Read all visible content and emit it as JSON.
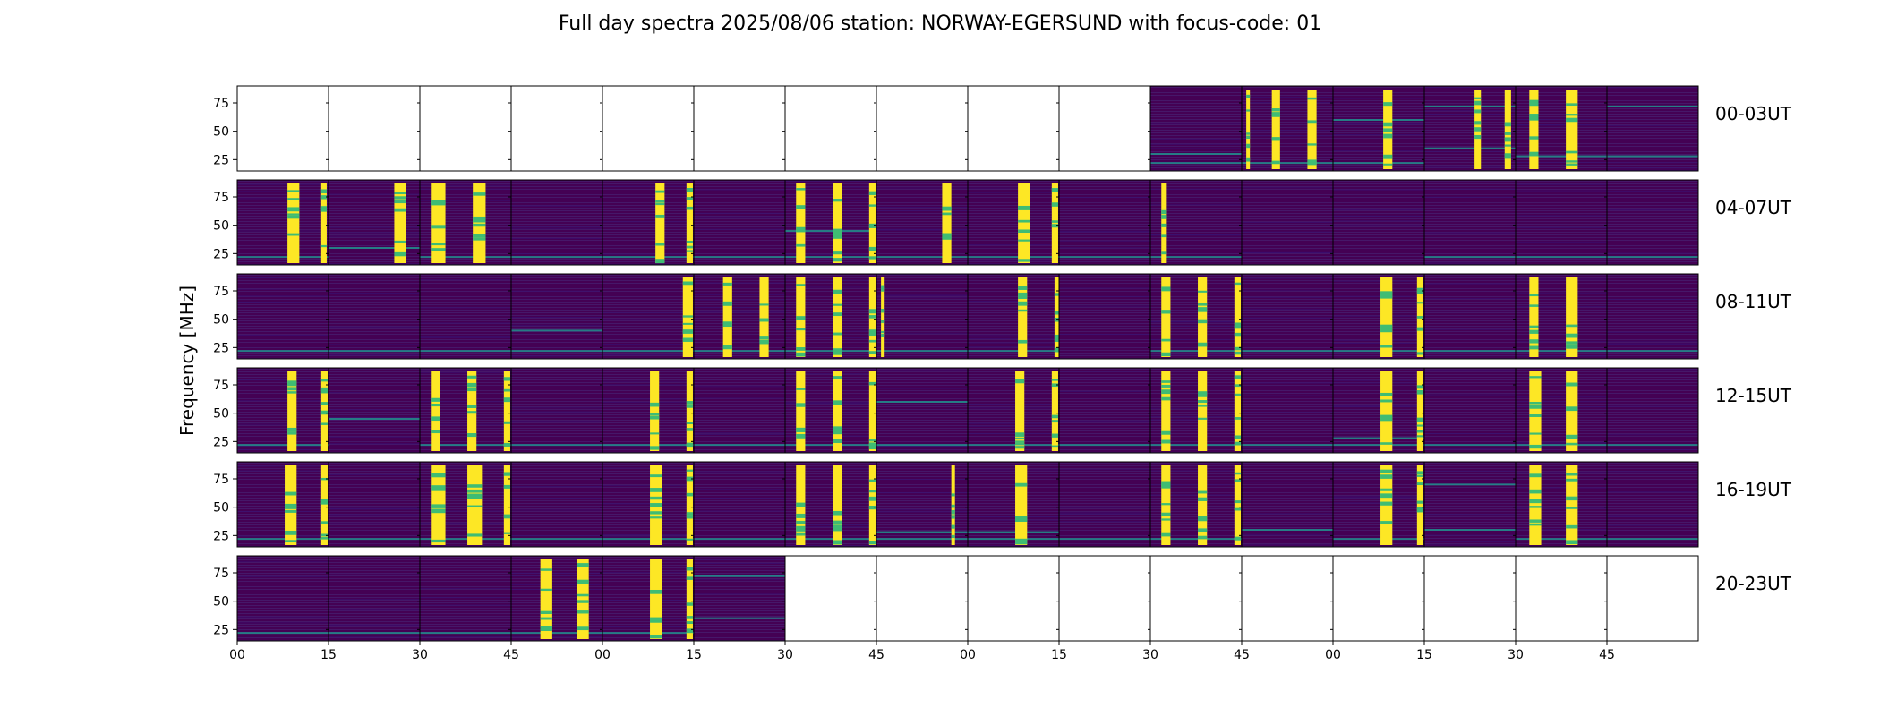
{
  "title": "Full day spectra 2025/08/06 station: NORWAY-EGERSUND with focus-code: 01",
  "colors": {
    "background_panel": "#440154",
    "panel_mid": "#3b0f70",
    "signal_low": "#21908d",
    "signal_mid": "#3fbc73",
    "signal_high": "#fde725",
    "empty_panel": "#ffffff",
    "axis": "#000000"
  },
  "chart_data": {
    "type": "heatmap",
    "colormap": "viridis",
    "title": "Full day spectra 2025/08/06 station: NORWAY-EGERSUND with focus-code: 01",
    "ylabel": "Frequency [MHz]",
    "xlabel": "",
    "ylim": [
      15,
      90
    ],
    "y_ticks": [
      "75",
      "50",
      "25"
    ],
    "y_tick_values": [
      75,
      50,
      25
    ],
    "x_tick_labels": [
      "00",
      "15",
      "30",
      "45",
      "00",
      "15",
      "30",
      "45",
      "00",
      "15",
      "30",
      "45",
      "00",
      "15",
      "30",
      "45"
    ],
    "rows": [
      {
        "label": "00-03UT",
        "panels": [
          {
            "filled": false
          },
          {
            "filled": false
          },
          {
            "filled": false
          },
          {
            "filled": false
          },
          {
            "filled": false
          },
          {
            "filled": false
          },
          {
            "filled": false
          },
          {
            "filled": false
          },
          {
            "filled": false
          },
          {
            "filled": false
          },
          {
            "filled": true,
            "bands": [],
            "hlines": [
              30,
              22
            ]
          },
          {
            "filled": true,
            "bands": [
              [
                0.05,
                0.09
              ],
              [
                0.33,
                0.42
              ],
              [
                0.72,
                0.82
              ]
            ],
            "hlines": [
              22
            ]
          },
          {
            "filled": true,
            "bands": [
              [
                0.55,
                0.65
              ]
            ],
            "hlines": [
              22,
              60
            ]
          },
          {
            "filled": true,
            "bands": [
              [
                0.55,
                0.62
              ],
              [
                0.88,
                0.95
              ]
            ],
            "hlines": [
              72,
              35
            ]
          },
          {
            "filled": true,
            "bands": [
              [
                0.15,
                0.25
              ],
              [
                0.55,
                0.68
              ]
            ],
            "hlines": [
              28
            ]
          },
          {
            "filled": true,
            "bands": [],
            "hlines": [
              72,
              28
            ]
          }
        ]
      },
      {
        "label": "04-07UT",
        "panels": [
          {
            "filled": true,
            "bands": [
              [
                0.55,
                0.68
              ],
              [
                0.92,
                0.98
              ]
            ],
            "hlines": [
              22
            ]
          },
          {
            "filled": true,
            "bands": [
              [
                0.72,
                0.85
              ]
            ],
            "hlines": [
              30
            ]
          },
          {
            "filled": true,
            "bands": [
              [
                0.12,
                0.28
              ],
              [
                0.58,
                0.72
              ]
            ],
            "hlines": [
              22
            ]
          },
          {
            "filled": true,
            "bands": [],
            "hlines": [
              22
            ]
          },
          {
            "filled": true,
            "bands": [
              [
                0.58,
                0.68
              ],
              [
                0.92,
                0.99
              ]
            ],
            "hlines": [
              22
            ]
          },
          {
            "filled": true,
            "bands": [],
            "hlines": [
              22
            ]
          },
          {
            "filled": true,
            "bands": [
              [
                0.12,
                0.22
              ],
              [
                0.52,
                0.62
              ],
              [
                0.92,
                0.99
              ]
            ],
            "hlines": [
              45,
              22
            ]
          },
          {
            "filled": true,
            "bands": [
              [
                0.72,
                0.82
              ]
            ],
            "hlines": [
              22
            ]
          },
          {
            "filled": true,
            "bands": [
              [
                0.55,
                0.68
              ],
              [
                0.92,
                0.99
              ]
            ],
            "hlines": [
              22
            ]
          },
          {
            "filled": true,
            "bands": [],
            "hlines": [
              22
            ]
          },
          {
            "filled": true,
            "bands": [
              [
                0.12,
                0.18
              ]
            ],
            "hlines": [
              22
            ]
          },
          {
            "filled": true,
            "bands": [],
            "hlines": []
          },
          {
            "filled": true,
            "bands": [],
            "hlines": []
          },
          {
            "filled": true,
            "bands": [],
            "hlines": [
              22
            ]
          },
          {
            "filled": true,
            "bands": [],
            "hlines": [
              22
            ]
          },
          {
            "filled": true,
            "bands": [],
            "hlines": [
              22
            ]
          }
        ]
      },
      {
        "label": "08-11UT",
        "panels": [
          {
            "filled": true,
            "bands": [],
            "hlines": [
              22
            ]
          },
          {
            "filled": true,
            "bands": [],
            "hlines": [
              22
            ]
          },
          {
            "filled": true,
            "bands": [],
            "hlines": [
              22
            ]
          },
          {
            "filled": true,
            "bands": [],
            "hlines": [
              40,
              22
            ]
          },
          {
            "filled": true,
            "bands": [
              [
                0.88,
                0.99
              ]
            ],
            "hlines": [
              22
            ]
          },
          {
            "filled": true,
            "bands": [
              [
                0.32,
                0.42
              ],
              [
                0.72,
                0.82
              ]
            ],
            "hlines": [
              22
            ]
          },
          {
            "filled": true,
            "bands": [
              [
                0.12,
                0.22
              ],
              [
                0.52,
                0.62
              ],
              [
                0.92,
                0.99
              ]
            ],
            "hlines": [
              22
            ]
          },
          {
            "filled": true,
            "bands": [
              [
                0.05,
                0.09
              ]
            ],
            "hlines": [
              22
            ]
          },
          {
            "filled": true,
            "bands": [
              [
                0.55,
                0.65
              ],
              [
                0.95,
                1.0
              ]
            ],
            "hlines": [
              22
            ]
          },
          {
            "filled": true,
            "bands": [],
            "hlines": []
          },
          {
            "filled": true,
            "bands": [
              [
                0.12,
                0.22
              ],
              [
                0.52,
                0.62
              ],
              [
                0.92,
                0.99
              ]
            ],
            "hlines": [
              22
            ]
          },
          {
            "filled": true,
            "bands": [],
            "hlines": [
              22
            ]
          },
          {
            "filled": true,
            "bands": [
              [
                0.52,
                0.65
              ],
              [
                0.92,
                0.99
              ]
            ],
            "hlines": [
              22
            ]
          },
          {
            "filled": true,
            "bands": [],
            "hlines": [
              22
            ]
          },
          {
            "filled": true,
            "bands": [
              [
                0.15,
                0.25
              ],
              [
                0.55,
                0.68
              ]
            ],
            "hlines": [
              22
            ]
          },
          {
            "filled": true,
            "bands": [],
            "hlines": [
              22
            ]
          }
        ]
      },
      {
        "label": "12-15UT",
        "panels": [
          {
            "filled": true,
            "bands": [
              [
                0.55,
                0.65
              ],
              [
                0.92,
                0.99
              ]
            ],
            "hlines": [
              22
            ]
          },
          {
            "filled": true,
            "bands": [],
            "hlines": [
              45
            ]
          },
          {
            "filled": true,
            "bands": [
              [
                0.12,
                0.22
              ],
              [
                0.52,
                0.62
              ],
              [
                0.92,
                0.99
              ]
            ],
            "hlines": [
              22
            ]
          },
          {
            "filled": true,
            "bands": [],
            "hlines": [
              22
            ]
          },
          {
            "filled": true,
            "bands": [
              [
                0.52,
                0.62
              ],
              [
                0.92,
                0.99
              ]
            ],
            "hlines": [
              22
            ]
          },
          {
            "filled": true,
            "bands": [],
            "hlines": [
              22
            ]
          },
          {
            "filled": true,
            "bands": [
              [
                0.12,
                0.22
              ],
              [
                0.52,
                0.62
              ],
              [
                0.92,
                0.99
              ]
            ],
            "hlines": [
              22
            ]
          },
          {
            "filled": true,
            "bands": [],
            "hlines": [
              60,
              22
            ]
          },
          {
            "filled": true,
            "bands": [
              [
                0.52,
                0.62
              ],
              [
                0.92,
                0.99
              ]
            ],
            "hlines": [
              22
            ]
          },
          {
            "filled": true,
            "bands": [],
            "hlines": [
              22
            ]
          },
          {
            "filled": true,
            "bands": [
              [
                0.12,
                0.22
              ],
              [
                0.52,
                0.62
              ],
              [
                0.92,
                0.99
              ]
            ],
            "hlines": [
              22
            ]
          },
          {
            "filled": true,
            "bands": [],
            "hlines": [
              22
            ]
          },
          {
            "filled": true,
            "bands": [
              [
                0.52,
                0.65
              ],
              [
                0.92,
                0.99
              ]
            ],
            "hlines": [
              28,
              22
            ]
          },
          {
            "filled": true,
            "bands": [],
            "hlines": [
              22
            ]
          },
          {
            "filled": true,
            "bands": [
              [
                0.15,
                0.28
              ],
              [
                0.55,
                0.68
              ]
            ],
            "hlines": [
              22
            ]
          },
          {
            "filled": true,
            "bands": [],
            "hlines": [
              22
            ]
          }
        ]
      },
      {
        "label": "16-19UT",
        "panels": [
          {
            "filled": true,
            "bands": [
              [
                0.52,
                0.65
              ],
              [
                0.92,
                0.99
              ]
            ],
            "hlines": [
              22
            ]
          },
          {
            "filled": true,
            "bands": [],
            "hlines": [
              22
            ]
          },
          {
            "filled": true,
            "bands": [
              [
                0.12,
                0.28
              ],
              [
                0.52,
                0.68
              ],
              [
                0.92,
                0.99
              ]
            ],
            "hlines": [
              22
            ]
          },
          {
            "filled": true,
            "bands": [],
            "hlines": [
              22
            ]
          },
          {
            "filled": true,
            "bands": [
              [
                0.52,
                0.65
              ],
              [
                0.92,
                0.99
              ]
            ],
            "hlines": [
              22
            ]
          },
          {
            "filled": true,
            "bands": [],
            "hlines": [
              22
            ]
          },
          {
            "filled": true,
            "bands": [
              [
                0.12,
                0.22
              ],
              [
                0.52,
                0.62
              ],
              [
                0.92,
                0.99
              ]
            ],
            "hlines": [
              22
            ]
          },
          {
            "filled": true,
            "bands": [
              [
                0.82,
                0.86
              ]
            ],
            "hlines": [
              28,
              22
            ]
          },
          {
            "filled": true,
            "bands": [
              [
                0.52,
                0.65
              ]
            ],
            "hlines": [
              28,
              22
            ]
          },
          {
            "filled": true,
            "bands": [],
            "hlines": [
              22
            ]
          },
          {
            "filled": true,
            "bands": [
              [
                0.12,
                0.22
              ],
              [
                0.52,
                0.62
              ],
              [
                0.92,
                0.99
              ]
            ],
            "hlines": [
              22
            ]
          },
          {
            "filled": true,
            "bands": [],
            "hlines": [
              30
            ]
          },
          {
            "filled": true,
            "bands": [
              [
                0.52,
                0.65
              ],
              [
                0.92,
                0.99
              ]
            ],
            "hlines": [
              22
            ]
          },
          {
            "filled": true,
            "bands": [],
            "hlines": [
              70,
              30
            ]
          },
          {
            "filled": true,
            "bands": [
              [
                0.15,
                0.28
              ],
              [
                0.55,
                0.68
              ]
            ],
            "hlines": [
              22
            ]
          },
          {
            "filled": true,
            "bands": [],
            "hlines": [
              22
            ]
          }
        ]
      },
      {
        "label": "20-23UT",
        "panels": [
          {
            "filled": true,
            "bands": [],
            "hlines": [
              22
            ]
          },
          {
            "filled": true,
            "bands": [],
            "hlines": [
              22
            ]
          },
          {
            "filled": true,
            "bands": [],
            "hlines": [
              22
            ]
          },
          {
            "filled": true,
            "bands": [
              [
                0.32,
                0.45
              ],
              [
                0.72,
                0.85
              ]
            ],
            "hlines": [
              22
            ]
          },
          {
            "filled": true,
            "bands": [
              [
                0.52,
                0.65
              ],
              [
                0.92,
                0.99
              ]
            ],
            "hlines": [
              22
            ]
          },
          {
            "filled": true,
            "bands": [],
            "hlines": [
              72,
              35
            ]
          },
          {
            "filled": false
          },
          {
            "filled": false
          },
          {
            "filled": false
          },
          {
            "filled": false
          },
          {
            "filled": false
          },
          {
            "filled": false
          },
          {
            "filled": false
          },
          {
            "filled": false
          },
          {
            "filled": false
          },
          {
            "filled": false
          }
        ]
      }
    ]
  }
}
